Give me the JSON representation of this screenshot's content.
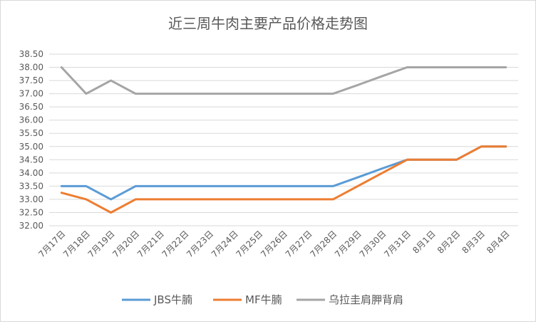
{
  "chart_data": {
    "type": "line",
    "title": "近三周牛肉主要产品价格走势图",
    "xlabel": "",
    "ylabel": "",
    "categories": [
      "7月17日",
      "7月18日",
      "7月19日",
      "7月20日",
      "7月21日",
      "7月22日",
      "7月23日",
      "7月24日",
      "7月25日",
      "7月26日",
      "7月27日",
      "7月28日",
      "7月29日",
      "7月30日",
      "7月31日",
      "8月1日",
      "8月2日",
      "8月3日",
      "8月4日"
    ],
    "y_ticks": [
      "32.00",
      "32.50",
      "33.00",
      "33.50",
      "34.00",
      "34.50",
      "35.00",
      "35.50",
      "36.00",
      "36.50",
      "37.00",
      "37.50",
      "38.00",
      "38.50"
    ],
    "ylim": [
      32.0,
      38.5
    ],
    "grid": true,
    "legend_position": "bottom",
    "series": [
      {
        "name": "JBS牛腩",
        "color": "#5b9bd5",
        "values": [
          33.5,
          33.5,
          33.0,
          33.5,
          33.5,
          33.5,
          33.5,
          33.5,
          33.5,
          33.5,
          33.5,
          33.5,
          33.83,
          34.17,
          34.5,
          34.5,
          34.5,
          35.0,
          35.0
        ]
      },
      {
        "name": "MF牛腩",
        "color": "#ed7d31",
        "values": [
          33.25,
          33.0,
          32.5,
          33.0,
          33.0,
          33.0,
          33.0,
          33.0,
          33.0,
          33.0,
          33.0,
          33.0,
          33.5,
          34.0,
          34.5,
          34.5,
          34.5,
          35.0,
          35.0
        ]
      },
      {
        "name": "乌拉圭肩胛背肩",
        "color": "#a5a5a5",
        "values": [
          38.0,
          37.0,
          37.5,
          37.0,
          37.0,
          37.0,
          37.0,
          37.0,
          37.0,
          37.0,
          37.0,
          37.0,
          37.33,
          37.67,
          38.0,
          38.0,
          38.0,
          38.0,
          38.0
        ]
      }
    ]
  }
}
